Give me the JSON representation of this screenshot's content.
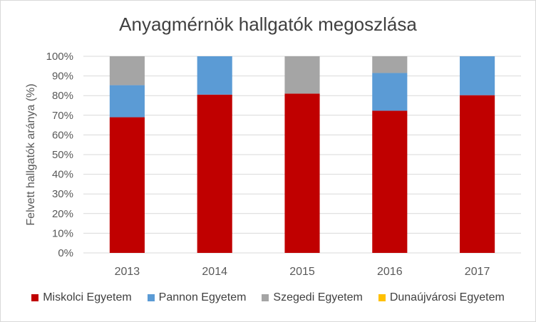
{
  "chart_data": {
    "type": "bar",
    "stacked": true,
    "title": "Anyagmérnök hallgatók megoszlása",
    "xlabel": "",
    "ylabel": "Felvett hallgatók aránya (%)",
    "ylim": [
      0,
      100
    ],
    "yticks": [
      "0%",
      "10%",
      "20%",
      "30%",
      "40%",
      "50%",
      "60%",
      "70%",
      "80%",
      "90%",
      "100%"
    ],
    "categories": [
      "2013",
      "2014",
      "2015",
      "2016",
      "2017"
    ],
    "series": [
      {
        "name": "Miskolci Egyetem",
        "color": "#C00000",
        "values": [
          69,
          80.5,
          81,
          72.3,
          80.2
        ]
      },
      {
        "name": "Pannon Egyetem",
        "color": "#5B9BD5",
        "values": [
          16.3,
          19.5,
          0,
          19.2,
          19.8
        ]
      },
      {
        "name": "Szegedi Egyetem",
        "color": "#A5A5A5",
        "values": [
          14.7,
          0,
          19,
          8.5,
          0
        ]
      },
      {
        "name": "Dunaújvárosi Egyetem",
        "color": "#FFC000",
        "values": [
          0,
          0,
          0,
          0,
          0
        ]
      }
    ],
    "grid": true,
    "legend_position": "bottom"
  }
}
